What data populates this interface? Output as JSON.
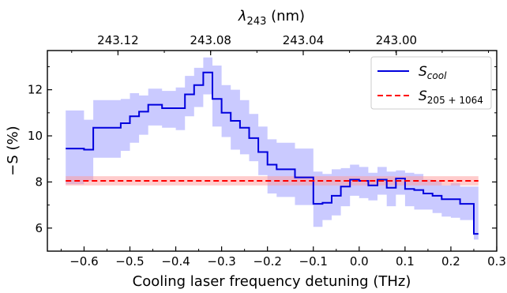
{
  "chart_data": {
    "type": "line",
    "xlabel": "Cooling laser frequency detuning (THz)",
    "ylabel": "−S (%)",
    "xlim": [
      -0.68,
      0.3
    ],
    "ylim": [
      5.0,
      13.7
    ],
    "x_ticks": [
      -0.6,
      -0.5,
      -0.4,
      -0.3,
      -0.2,
      -0.1,
      0.0,
      0.1,
      0.2,
      0.3
    ],
    "x_tick_labels": [
      "−0.6",
      "−0.5",
      "−0.4",
      "−0.3",
      "−0.2",
      "−0.1",
      "0.0",
      "0.1",
      "0.2",
      "0.3"
    ],
    "y_ticks": [
      6,
      8,
      10,
      12
    ],
    "y_tick_labels": [
      "6",
      "8",
      "10",
      "12"
    ],
    "top_axis": {
      "label_base": "λ",
      "label_sub": "243",
      "label_unit": " (nm)",
      "ticks": [
        {
          "label": "243.12",
          "x": -0.526
        },
        {
          "label": "243.08",
          "x": -0.324
        },
        {
          "label": "243.04",
          "x": -0.122
        },
        {
          "label": "243.00",
          "x": 0.081
        }
      ]
    },
    "legend_position": "top-right",
    "series": [
      {
        "name_base": "S",
        "name_sub": "cool",
        "color": "#0000dd",
        "style": "step",
        "x": [
          -0.64,
          -0.6,
          -0.58,
          -0.52,
          -0.5,
          -0.48,
          -0.46,
          -0.43,
          -0.4,
          -0.38,
          -0.36,
          -0.34,
          -0.32,
          -0.3,
          -0.28,
          -0.26,
          -0.24,
          -0.22,
          -0.2,
          -0.18,
          -0.14,
          -0.1,
          -0.08,
          -0.06,
          -0.04,
          -0.02,
          0.0,
          0.02,
          0.04,
          0.06,
          0.08,
          0.1,
          0.12,
          0.14,
          0.16,
          0.18,
          0.2,
          0.22,
          0.25,
          0.26
        ],
        "y": [
          9.45,
          9.4,
          10.35,
          10.55,
          10.85,
          11.05,
          11.35,
          11.2,
          11.2,
          11.8,
          12.2,
          12.75,
          11.6,
          11.0,
          10.65,
          10.35,
          9.9,
          9.3,
          8.75,
          8.55,
          8.2,
          7.05,
          7.1,
          7.4,
          7.8,
          8.1,
          8.05,
          7.85,
          8.1,
          7.75,
          8.15,
          7.7,
          7.65,
          7.5,
          7.4,
          7.25,
          7.25,
          7.05,
          5.75,
          5.75
        ],
        "upper": [
          11.1,
          10.7,
          11.55,
          11.6,
          11.85,
          11.75,
          12.05,
          11.95,
          12.1,
          12.6,
          12.95,
          13.4,
          13.05,
          12.2,
          12.0,
          11.55,
          10.95,
          10.4,
          9.85,
          9.7,
          9.45,
          8.45,
          8.35,
          8.55,
          8.6,
          8.75,
          8.65,
          8.4,
          8.65,
          8.45,
          8.5,
          8.4,
          8.35,
          8.1,
          8.05,
          7.85,
          7.95,
          7.8,
          7.8,
          7.8
        ],
        "lower": [
          7.9,
          8.05,
          9.05,
          9.35,
          9.7,
          10.05,
          10.45,
          10.35,
          10.25,
          10.85,
          11.25,
          11.8,
          10.4,
          9.95,
          9.4,
          9.2,
          8.9,
          8.3,
          7.5,
          7.35,
          7.0,
          6.05,
          6.35,
          6.55,
          6.95,
          7.4,
          7.3,
          7.2,
          7.45,
          6.95,
          7.45,
          6.95,
          6.8,
          6.8,
          6.65,
          6.5,
          6.45,
          6.35,
          5.5,
          5.5
        ]
      },
      {
        "name_base": "S",
        "name_sub": "205 + 1064",
        "color": "#ff0000",
        "style": "dashed-constant",
        "value": 8.05,
        "band": [
          7.85,
          8.25
        ],
        "x_range": [
          -0.64,
          0.26
        ]
      }
    ]
  }
}
